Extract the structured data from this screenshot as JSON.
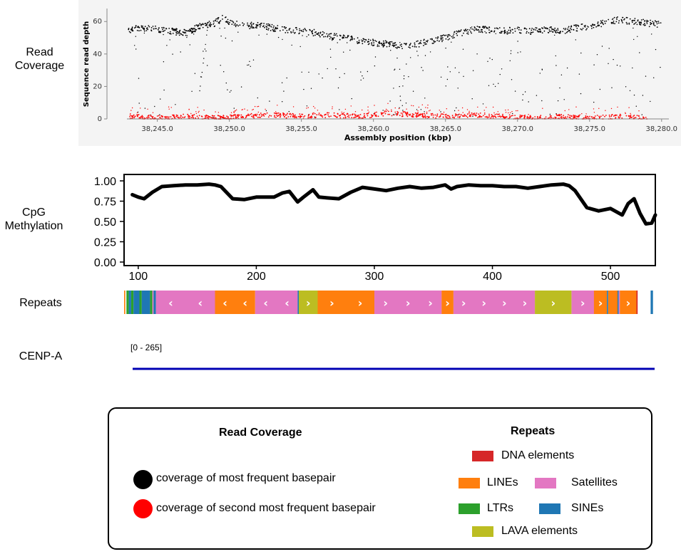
{
  "labels": {
    "read_coverage": "Read Coverage",
    "cpg_methylation": "CpG Methylation",
    "repeats": "Repeats",
    "cenpa": "CENP-A",
    "cenpa_range": "[0 - 265]"
  },
  "colors": {
    "most_frequent": "#000000",
    "second_frequent": "#ff0000",
    "dna": "#d62728",
    "line": "#ff7f0e",
    "satellite": "#e377c2",
    "ltr": "#2ca02c",
    "sine": "#1f77b4",
    "lava": "#bcbd22",
    "cenpa": "#0000b3"
  },
  "chart_data": [
    {
      "id": "read-coverage",
      "type": "scatter",
      "xlabel": "Assembly position (kbp)",
      "ylabel": "Sequence read depth",
      "xlim": [
        38242.0,
        38281.0
      ],
      "ylim": [
        0,
        68
      ],
      "x_ticks": [
        "38,245.0",
        "38,250.0",
        "38,255.0",
        "38,260.0",
        "38,265.0",
        "38,270.0",
        "38,275.0",
        "38,280.0"
      ],
      "x_tick_values": [
        38245,
        38250,
        38255,
        38260,
        38265,
        38270,
        38275,
        38280
      ],
      "y_ticks": [
        "0",
        "20",
        "40",
        "60"
      ],
      "y_tick_values": [
        0,
        20,
        40,
        60
      ],
      "series": [
        {
          "name": "coverage of most frequent basepair",
          "color": "#000000",
          "points": [
            [
              38243.0,
              57
            ],
            [
              38244.0,
              58
            ],
            [
              38245.0,
              57
            ],
            [
              38246.0,
              56
            ],
            [
              38247.0,
              55
            ],
            [
              38248.0,
              59
            ],
            [
              38249.0,
              61
            ],
            [
              38249.5,
              64
            ],
            [
              38250.0,
              62
            ],
            [
              38251.0,
              59
            ],
            [
              38252.0,
              60
            ],
            [
              38253.0,
              58
            ],
            [
              38254.0,
              57
            ],
            [
              38255.0,
              56
            ],
            [
              38256.0,
              55
            ],
            [
              38257.0,
              53
            ],
            [
              38258.0,
              52
            ],
            [
              38259.0,
              50
            ],
            [
              38260.0,
              49
            ],
            [
              38261.0,
              48
            ],
            [
              38262.0,
              47
            ],
            [
              38263.0,
              48
            ],
            [
              38264.0,
              50
            ],
            [
              38265.0,
              52
            ],
            [
              38266.0,
              55
            ],
            [
              38267.0,
              57
            ],
            [
              38268.0,
              57
            ],
            [
              38269.0,
              56
            ],
            [
              38270.0,
              57
            ],
            [
              38271.0,
              56
            ],
            [
              38272.0,
              57
            ],
            [
              38273.0,
              56
            ],
            [
              38274.0,
              58
            ],
            [
              38275.0,
              59
            ],
            [
              38276.0,
              61
            ],
            [
              38277.0,
              63
            ],
            [
              38278.0,
              62
            ],
            [
              38279.0,
              61
            ],
            [
              38280.0,
              60
            ]
          ]
        },
        {
          "name": "coverage of second most frequent basepair",
          "color": "#ff0000",
          "points": [
            [
              38243.0,
              3
            ],
            [
              38245.0,
              2
            ],
            [
              38247.0,
              3
            ],
            [
              38249.0,
              2
            ],
            [
              38251.0,
              3
            ],
            [
              38253.0,
              4
            ],
            [
              38255.0,
              3
            ],
            [
              38257.0,
              4
            ],
            [
              38259.0,
              3
            ],
            [
              38261.0,
              5
            ],
            [
              38263.0,
              4
            ],
            [
              38265.0,
              3
            ],
            [
              38267.0,
              4
            ],
            [
              38269.0,
              3
            ],
            [
              38271.0,
              2
            ],
            [
              38273.0,
              3
            ],
            [
              38275.0,
              2
            ],
            [
              38277.0,
              3
            ],
            [
              38279.0,
              2
            ]
          ]
        }
      ]
    },
    {
      "id": "cpg-methylation",
      "type": "line",
      "xlim": [
        88,
        538
      ],
      "ylim": [
        0,
        1.0
      ],
      "x_ticks": [
        "100",
        "200",
        "300",
        "400",
        "500"
      ],
      "x_tick_values": [
        100,
        200,
        300,
        400,
        500
      ],
      "y_ticks": [
        "1.00",
        "0.75",
        "0.50",
        "0.25",
        "0.00"
      ],
      "y_tick_values": [
        1.0,
        0.75,
        0.5,
        0.25,
        0.0
      ],
      "series": [
        {
          "color": "#000000",
          "x": [
            95,
            100,
            105,
            112,
            120,
            130,
            140,
            150,
            160,
            165,
            170,
            180,
            190,
            200,
            205,
            215,
            222,
            228,
            235,
            240,
            248,
            253,
            260,
            270,
            280,
            290,
            300,
            310,
            320,
            330,
            340,
            350,
            360,
            365,
            370,
            380,
            390,
            400,
            410,
            420,
            430,
            440,
            450,
            460,
            465,
            470,
            480,
            490,
            500,
            510,
            515,
            520,
            525,
            530,
            535,
            538
          ],
          "y": [
            0.83,
            0.8,
            0.78,
            0.86,
            0.93,
            0.94,
            0.95,
            0.95,
            0.96,
            0.95,
            0.93,
            0.78,
            0.77,
            0.8,
            0.8,
            0.8,
            0.85,
            0.87,
            0.74,
            0.8,
            0.89,
            0.8,
            0.79,
            0.78,
            0.86,
            0.92,
            0.9,
            0.88,
            0.91,
            0.93,
            0.91,
            0.92,
            0.95,
            0.9,
            0.93,
            0.95,
            0.94,
            0.94,
            0.93,
            0.93,
            0.91,
            0.93,
            0.95,
            0.96,
            0.94,
            0.88,
            0.67,
            0.63,
            0.66,
            0.58,
            0.72,
            0.78,
            0.6,
            0.47,
            0.48,
            0.58
          ]
        }
      ]
    },
    {
      "id": "repeats-track",
      "type": "table",
      "segments": [
        {
          "start": 88,
          "end": 89,
          "class": "line"
        },
        {
          "start": 90,
          "end": 92,
          "class": "ltr"
        },
        {
          "start": 92,
          "end": 94,
          "class": "sine"
        },
        {
          "start": 94,
          "end": 96,
          "class": "ltr"
        },
        {
          "start": 96,
          "end": 101,
          "class": "sine"
        },
        {
          "start": 101,
          "end": 103,
          "class": "ltr"
        },
        {
          "start": 103,
          "end": 110,
          "class": "sine"
        },
        {
          "start": 110,
          "end": 112,
          "class": "ltr"
        },
        {
          "start": 112,
          "end": 113,
          "class": "satellite"
        },
        {
          "start": 113,
          "end": 115,
          "class": "sine"
        },
        {
          "start": 115,
          "end": 165,
          "class": "satellite",
          "strand": "-"
        },
        {
          "start": 165,
          "end": 199,
          "class": "line",
          "strand": "-"
        },
        {
          "start": 199,
          "end": 235,
          "class": "satellite",
          "strand": "-"
        },
        {
          "start": 235,
          "end": 236,
          "class": "sine"
        },
        {
          "start": 236,
          "end": 252,
          "class": "lava",
          "strand": "+"
        },
        {
          "start": 252,
          "end": 300,
          "class": "line",
          "strand": "+"
        },
        {
          "start": 300,
          "end": 357,
          "class": "satellite",
          "strand": "+"
        },
        {
          "start": 357,
          "end": 367,
          "class": "line",
          "strand": "+"
        },
        {
          "start": 367,
          "end": 436,
          "class": "satellite",
          "strand": "+"
        },
        {
          "start": 436,
          "end": 467,
          "class": "lava",
          "strand": "+"
        },
        {
          "start": 467,
          "end": 486,
          "class": "satellite",
          "strand": "+"
        },
        {
          "start": 486,
          "end": 497,
          "class": "line",
          "strand": "+"
        },
        {
          "start": 497,
          "end": 498,
          "class": "sine"
        },
        {
          "start": 498,
          "end": 506,
          "class": "line",
          "strand": "+"
        },
        {
          "start": 506,
          "end": 507,
          "class": "sine"
        },
        {
          "start": 507,
          "end": 508,
          "class": "satellite"
        },
        {
          "start": 508,
          "end": 522,
          "class": "line",
          "strand": "+"
        },
        {
          "start": 522,
          "end": 523,
          "class": "dna"
        },
        {
          "start": 534,
          "end": 536,
          "class": "sine"
        }
      ]
    }
  ],
  "legend": {
    "read_coverage_title": "Read Coverage",
    "most_frequent": "coverage of most frequent basepair",
    "second_frequent": "coverage of second most frequent basepair",
    "repeats_title": "Repeats",
    "dna": "DNA elements",
    "lines": "LINEs",
    "satellites": "Satellites",
    "ltrs": "LTRs",
    "sines": "SINEs",
    "lava": "LAVA elements"
  }
}
